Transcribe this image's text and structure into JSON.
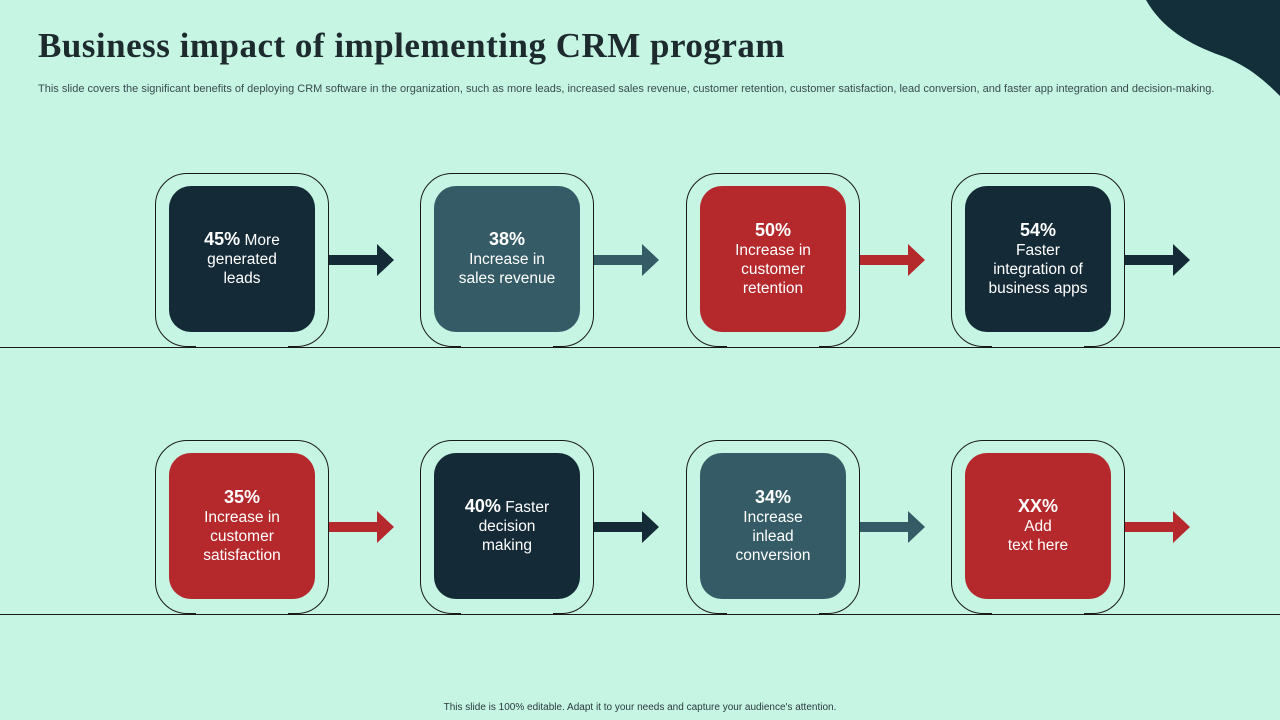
{
  "slide": {
    "title": "Business impact of implementing CRM program",
    "subtitle": "This slide covers the significant benefits of deploying CRM software in the organization, such as more leads, increased sales revenue, customer retention, customer satisfaction, lead conversion, and faster app integration and decision-making.",
    "footer": "This slide is 100% editable.  Adapt it to your needs and capture your audience's attention."
  },
  "colors": {
    "background": "#c6f5e4",
    "navy": "#142b37",
    "teal": "#355c66",
    "red": "#b5282b",
    "corner": "#13303a"
  },
  "cards": [
    {
      "pct": "45%",
      "pct_inline": true,
      "text": "More generated leads",
      "lines": [
        "More",
        "generated",
        "leads"
      ],
      "color": "navy"
    },
    {
      "pct": "38%",
      "pct_inline": false,
      "text": "Increase in sales revenue",
      "lines": [
        "Increase in",
        "sales revenue"
      ],
      "color": "teal"
    },
    {
      "pct": "50%",
      "pct_inline": false,
      "text": "Increase in customer retention",
      "lines": [
        "Increase in",
        "customer",
        "retention"
      ],
      "color": "red"
    },
    {
      "pct": "54%",
      "pct_inline": false,
      "text": "Faster integration of business apps",
      "lines": [
        "Faster",
        "integration of",
        "business apps"
      ],
      "color": "navy"
    },
    {
      "pct": "35%",
      "pct_inline": false,
      "text": "Increase in customer satisfaction",
      "lines": [
        "Increase in",
        "customer",
        "satisfaction"
      ],
      "color": "red"
    },
    {
      "pct": "40%",
      "pct_inline": true,
      "text": "Faster decision making",
      "lines": [
        "Faster",
        "decision",
        "making"
      ],
      "color": "navy"
    },
    {
      "pct": "34%",
      "pct_inline": false,
      "text": "Increase inlead conversion",
      "lines": [
        "Increase",
        "inlead",
        "conversion"
      ],
      "color": "teal"
    },
    {
      "pct": "XX%",
      "pct_inline": false,
      "text": "Add text here",
      "lines": [
        "Add",
        "text here"
      ],
      "color": "red"
    }
  ]
}
